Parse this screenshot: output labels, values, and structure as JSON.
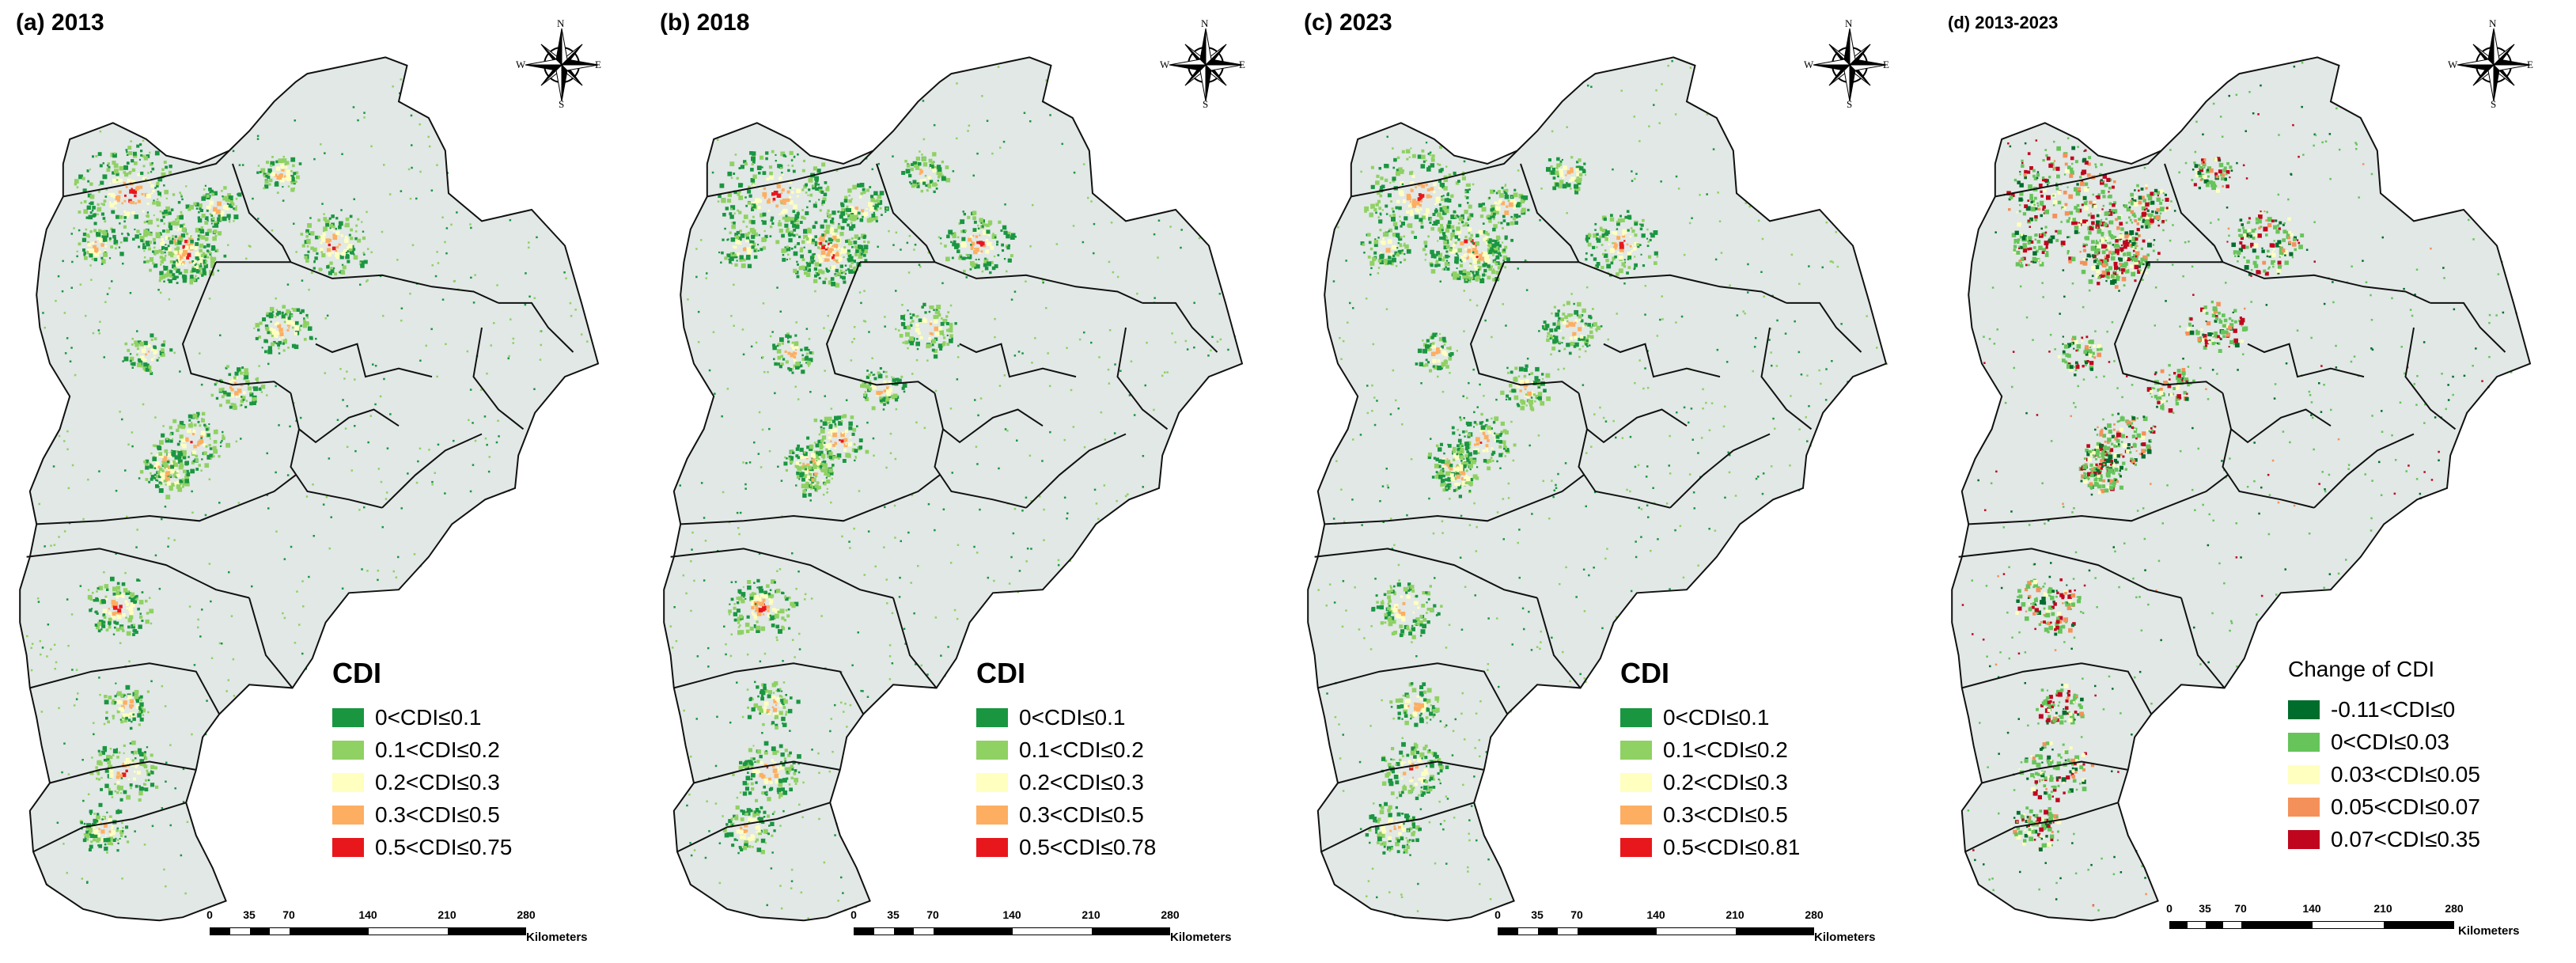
{
  "panels": [
    {
      "title": "(a) 2013",
      "legend_title": "CDI",
      "legend": [
        {
          "label": "0<CDI≤0.1",
          "color": "#1a9641"
        },
        {
          "label": "0.1<CDI≤0.2",
          "color": "#8fd163"
        },
        {
          "label": "0.2<CDI≤0.3",
          "color": "#ffffbf"
        },
        {
          "label": "0.3<CDI≤0.5",
          "color": "#fdae61"
        },
        {
          "label": "0.5<CDI≤0.75",
          "color": "#e8171c"
        }
      ]
    },
    {
      "title": "(b) 2018",
      "legend_title": "CDI",
      "legend": [
        {
          "label": "0<CDI≤0.1",
          "color": "#1a9641"
        },
        {
          "label": "0.1<CDI≤0.2",
          "color": "#8fd163"
        },
        {
          "label": "0.2<CDI≤0.3",
          "color": "#ffffbf"
        },
        {
          "label": "0.3<CDI≤0.5",
          "color": "#fdae61"
        },
        {
          "label": "0.5<CDI≤0.78",
          "color": "#e8171c"
        }
      ]
    },
    {
      "title": "(c) 2023",
      "legend_title": "CDI",
      "legend": [
        {
          "label": "0<CDI≤0.1",
          "color": "#1a9641"
        },
        {
          "label": "0.1<CDI≤0.2",
          "color": "#8fd163"
        },
        {
          "label": "0.2<CDI≤0.3",
          "color": "#ffffbf"
        },
        {
          "label": "0.3<CDI≤0.5",
          "color": "#fdae61"
        },
        {
          "label": "0.5<CDI≤0.81",
          "color": "#e8171c"
        }
      ]
    },
    {
      "title": "(d) 2013-2023",
      "legend_title": "Change of CDI",
      "legend": [
        {
          "label": "-0.11<CDI≤0",
          "color": "#006d2c"
        },
        {
          "label": "0<CDI≤0.03",
          "color": "#66c45a"
        },
        {
          "label": "0.03<CDI≤0.05",
          "color": "#ffffbf"
        },
        {
          "label": "0.05<CDI≤0.07",
          "color": "#f4915a"
        },
        {
          "label": "0.07<CDI≤0.35",
          "color": "#c0061e"
        }
      ]
    }
  ],
  "compass": {
    "n": "N",
    "s": "S",
    "e": "E",
    "w": "W"
  },
  "scale": {
    "ticks": [
      "0",
      "35",
      "70",
      "140",
      "210",
      "280"
    ],
    "unit": "Kilometers"
  },
  "map_colors": {
    "base": "#e1e8e6",
    "boundary": "#111111",
    "subboundary": "#b9c3c1"
  }
}
